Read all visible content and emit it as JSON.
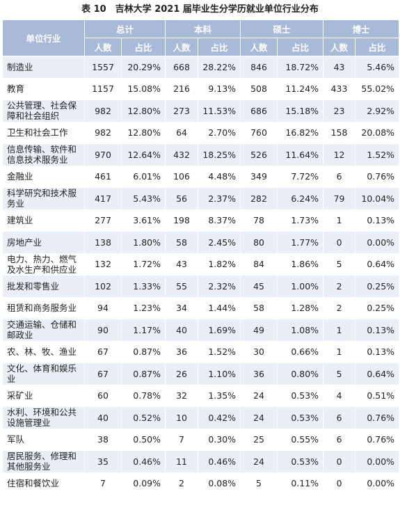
{
  "title": "表 10　吉林大学 2021 届毕业生分学历就业单位行业分布",
  "header": {
    "industry": "单位行业",
    "groups": [
      "总计",
      "本科",
      "硕士",
      "博士"
    ],
    "count_label": "人数",
    "ratio_label": "占比"
  },
  "rows": [
    {
      "industry": "制造业",
      "values": [
        "1557",
        "20.29%",
        "668",
        "28.22%",
        "846",
        "18.72%",
        "43",
        "5.46%"
      ]
    },
    {
      "industry": "教育",
      "values": [
        "1157",
        "15.08%",
        "216",
        "9.13%",
        "508",
        "11.24%",
        "433",
        "55.02%"
      ]
    },
    {
      "industry": "公共管理、社会保障和社会组织",
      "values": [
        "982",
        "12.80%",
        "273",
        "11.53%",
        "686",
        "15.18%",
        "23",
        "2.92%"
      ]
    },
    {
      "industry": "卫生和社会工作",
      "values": [
        "982",
        "12.80%",
        "64",
        "2.70%",
        "760",
        "16.82%",
        "158",
        "20.08%"
      ]
    },
    {
      "industry": "信息传输、软件和信息技术服务业",
      "values": [
        "970",
        "12.64%",
        "432",
        "18.25%",
        "526",
        "11.64%",
        "12",
        "1.52%"
      ]
    },
    {
      "industry": "金融业",
      "values": [
        "461",
        "6.01%",
        "106",
        "4.48%",
        "349",
        "7.72%",
        "6",
        "0.76%"
      ]
    },
    {
      "industry": "科学研究和技术服务业",
      "values": [
        "417",
        "5.43%",
        "56",
        "2.37%",
        "282",
        "6.24%",
        "79",
        "10.04%"
      ]
    },
    {
      "industry": "建筑业",
      "values": [
        "277",
        "3.61%",
        "198",
        "8.37%",
        "78",
        "1.73%",
        "1",
        "0.13%"
      ]
    },
    {
      "industry": "房地产业",
      "values": [
        "138",
        "1.80%",
        "58",
        "2.45%",
        "80",
        "1.77%",
        "0",
        "0.00%"
      ]
    },
    {
      "industry": "电力、热力、燃气及水生产和供应业",
      "values": [
        "132",
        "1.72%",
        "43",
        "1.82%",
        "84",
        "1.86%",
        "5",
        "0.64%"
      ]
    },
    {
      "industry": "批发和零售业",
      "values": [
        "102",
        "1.33%",
        "55",
        "2.32%",
        "45",
        "1.00%",
        "2",
        "0.25%"
      ]
    },
    {
      "industry": "租赁和商务服务业",
      "values": [
        "94",
        "1.23%",
        "34",
        "1.44%",
        "58",
        "1.28%",
        "2",
        "0.25%"
      ]
    },
    {
      "industry": "交通运输、仓储和邮政业",
      "values": [
        "90",
        "1.17%",
        "40",
        "1.69%",
        "49",
        "1.08%",
        "1",
        "0.13%"
      ]
    },
    {
      "industry": "农、林、牧、渔业",
      "values": [
        "67",
        "0.87%",
        "36",
        "1.52%",
        "30",
        "0.66%",
        "1",
        "0.13%"
      ]
    },
    {
      "industry": "文化、体育和娱乐业",
      "values": [
        "67",
        "0.87%",
        "26",
        "1.10%",
        "36",
        "0.80%",
        "5",
        "0.64%"
      ]
    },
    {
      "industry": "采矿业",
      "values": [
        "60",
        "0.78%",
        "32",
        "1.35%",
        "24",
        "0.53%",
        "4",
        "0.51%"
      ]
    },
    {
      "industry": "水利、环境和公共设施管理业",
      "values": [
        "40",
        "0.52%",
        "10",
        "0.42%",
        "24",
        "0.53%",
        "6",
        "0.76%"
      ]
    },
    {
      "industry": "军队",
      "values": [
        "38",
        "0.50%",
        "7",
        "0.30%",
        "25",
        "0.55%",
        "6",
        "0.76%"
      ]
    },
    {
      "industry": "居民服务、修理和其他服务业",
      "values": [
        "35",
        "0.46%",
        "11",
        "0.46%",
        "24",
        "0.53%",
        "0",
        "0.00%"
      ]
    },
    {
      "industry": "住宿和餐饮业",
      "values": [
        "7",
        "0.09%",
        "2",
        "0.08%",
        "5",
        "0.11%",
        "0",
        "0.00%"
      ]
    }
  ]
}
